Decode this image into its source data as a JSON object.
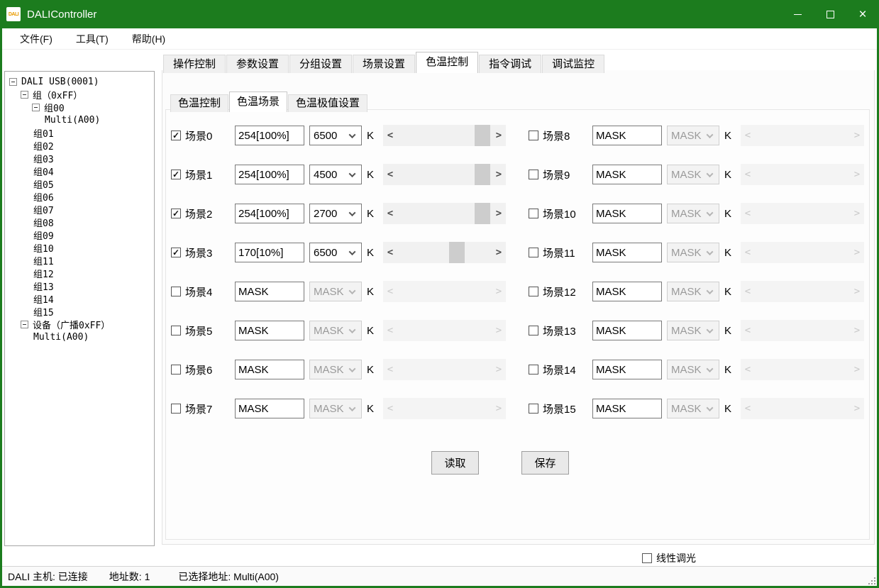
{
  "window": {
    "title": "DALIController",
    "icon_text": "DALI"
  },
  "menu": {
    "items": [
      "文件(F)",
      "工具(T)",
      "帮助(H)"
    ]
  },
  "tree": {
    "nodes": [
      {
        "label": "DALI USB(0001)",
        "depth": 0,
        "expander": true
      },
      {
        "label": "组（0xFF）",
        "depth": 1,
        "expander": true
      },
      {
        "label": "组00",
        "depth": 2,
        "expander": true
      },
      {
        "label": "Multi(A00)",
        "depth": 3,
        "expander": false
      },
      {
        "label": "组01",
        "depth": 2,
        "expander": false
      },
      {
        "label": "组02",
        "depth": 2,
        "expander": false
      },
      {
        "label": "组03",
        "depth": 2,
        "expander": false
      },
      {
        "label": "组04",
        "depth": 2,
        "expander": false
      },
      {
        "label": "组05",
        "depth": 2,
        "expander": false
      },
      {
        "label": "组06",
        "depth": 2,
        "expander": false
      },
      {
        "label": "组07",
        "depth": 2,
        "expander": false
      },
      {
        "label": "组08",
        "depth": 2,
        "expander": false
      },
      {
        "label": "组09",
        "depth": 2,
        "expander": false
      },
      {
        "label": "组10",
        "depth": 2,
        "expander": false
      },
      {
        "label": "组11",
        "depth": 2,
        "expander": false
      },
      {
        "label": "组12",
        "depth": 2,
        "expander": false
      },
      {
        "label": "组13",
        "depth": 2,
        "expander": false
      },
      {
        "label": "组14",
        "depth": 2,
        "expander": false
      },
      {
        "label": "组15",
        "depth": 2,
        "expander": false
      },
      {
        "label": "设备（广播0xFF）",
        "depth": 1,
        "expander": true
      },
      {
        "label": "Multi(A00)",
        "depth": 2,
        "expander": false
      }
    ]
  },
  "tabs": {
    "items": [
      "操作控制",
      "参数设置",
      "分组设置",
      "场景设置",
      "色温控制",
      "指令调试",
      "调试监控"
    ],
    "active_index": 4
  },
  "subtabs": {
    "items": [
      "色温控制",
      "色温场景",
      "色温极值设置"
    ],
    "active_index": 1
  },
  "scene_unit": "K",
  "scenes": [
    {
      "label": "场景0",
      "checked": true,
      "value": "254[100%]",
      "cct": "6500",
      "enabled": true,
      "thumb": 0.98
    },
    {
      "label": "场景1",
      "checked": true,
      "value": "254[100%]",
      "cct": "4500",
      "enabled": true,
      "thumb": 0.98
    },
    {
      "label": "场景2",
      "checked": true,
      "value": "254[100%]",
      "cct": "2700",
      "enabled": true,
      "thumb": 0.98
    },
    {
      "label": "场景3",
      "checked": true,
      "value": "170[10%]",
      "cct": "6500",
      "enabled": true,
      "thumb": 0.66
    },
    {
      "label": "场景4",
      "checked": false,
      "value": "MASK",
      "cct": "MASK",
      "enabled": false,
      "thumb": null
    },
    {
      "label": "场景5",
      "checked": false,
      "value": "MASK",
      "cct": "MASK",
      "enabled": false,
      "thumb": null
    },
    {
      "label": "场景6",
      "checked": false,
      "value": "MASK",
      "cct": "MASK",
      "enabled": false,
      "thumb": null
    },
    {
      "label": "场景7",
      "checked": false,
      "value": "MASK",
      "cct": "MASK",
      "enabled": false,
      "thumb": null
    },
    {
      "label": "场景8",
      "checked": false,
      "value": "MASK",
      "cct": "MASK",
      "enabled": false,
      "thumb": null
    },
    {
      "label": "场景9",
      "checked": false,
      "value": "MASK",
      "cct": "MASK",
      "enabled": false,
      "thumb": null
    },
    {
      "label": "场景10",
      "checked": false,
      "value": "MASK",
      "cct": "MASK",
      "enabled": false,
      "thumb": null
    },
    {
      "label": "场景11",
      "checked": false,
      "value": "MASK",
      "cct": "MASK",
      "enabled": false,
      "thumb": null
    },
    {
      "label": "场景12",
      "checked": false,
      "value": "MASK",
      "cct": "MASK",
      "enabled": false,
      "thumb": null
    },
    {
      "label": "场景13",
      "checked": false,
      "value": "MASK",
      "cct": "MASK",
      "enabled": false,
      "thumb": null
    },
    {
      "label": "场景14",
      "checked": false,
      "value": "MASK",
      "cct": "MASK",
      "enabled": false,
      "thumb": null
    },
    {
      "label": "场景15",
      "checked": false,
      "value": "MASK",
      "cct": "MASK",
      "enabled": false,
      "thumb": null
    }
  ],
  "buttons": {
    "read": "读取",
    "save": "保存"
  },
  "footer": {
    "linear_dimming_label": "线性调光",
    "checked": false
  },
  "statusbar": {
    "host": "DALI 主机: 已连接",
    "address_count": "地址数: 1",
    "selected_address": "已选择地址: Multi(A00)"
  },
  "icons": {
    "close": "×",
    "check": "✓",
    "scroll_left": "<",
    "scroll_right": ">"
  },
  "colors": {
    "titlebar_green": "#1c7c1e",
    "scrollbar_track": "#f1f1f1",
    "scrollbar_thumb": "#cdcdcd",
    "disabled_text": "#9a9a9a",
    "tab_inactive_bg": "#f0f0f0"
  }
}
